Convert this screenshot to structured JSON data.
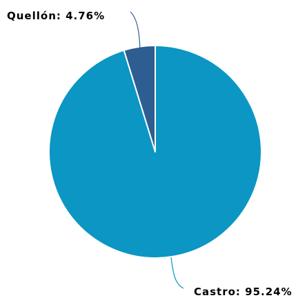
{
  "chart_data": {
    "type": "pie",
    "slices": [
      {
        "name": "Castro",
        "value": 95.24,
        "label": "Castro: 95.24%",
        "color": "#0b96c4"
      },
      {
        "name": "Quellón",
        "value": 4.76,
        "label": "Quellón: 4.76%",
        "color": "#2e5e91"
      }
    ],
    "legend": "none"
  }
}
